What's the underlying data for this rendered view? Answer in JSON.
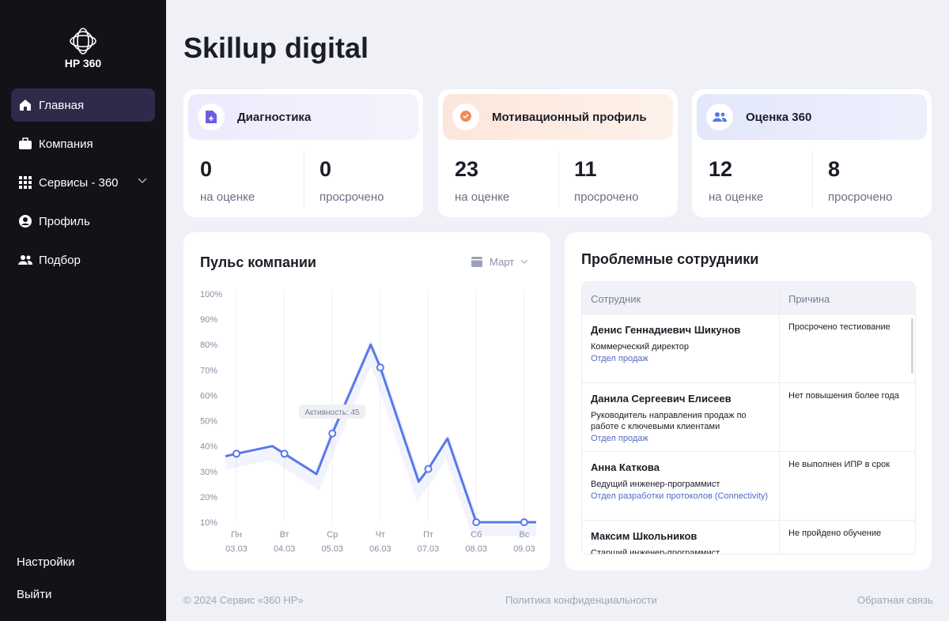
{
  "sidebar": {
    "logo": "HP 360",
    "menu": [
      "Главная",
      "Компания",
      "Сервисы - 360",
      "Профиль",
      "Подбор"
    ],
    "bottom": [
      "Настройки",
      "Выйти"
    ]
  },
  "header": {
    "title": "Skillup digital"
  },
  "cards": [
    {
      "title": "Диагностика",
      "stats": [
        {
          "value": 0,
          "label": "на оценке"
        },
        {
          "value": 0,
          "label": "просрочено"
        }
      ]
    },
    {
      "title": "Мотивационный профиль",
      "stats": [
        {
          "value": 23,
          "label": "на оценке"
        },
        {
          "value": 11,
          "label": "просрочено"
        }
      ]
    },
    {
      "title": "Оценка 360",
      "stats": [
        {
          "value": 12,
          "label": "на оценке"
        },
        {
          "value": 8,
          "label": "просрочено"
        }
      ]
    }
  ],
  "chart_data": {
    "type": "line",
    "title": "Пульс компании",
    "period": "Март",
    "color": "#5a78ea",
    "x": [
      -0.23,
      0,
      0.75,
      1,
      1.67,
      2,
      2.8,
      3,
      3.8,
      4,
      4.4,
      5,
      6,
      6.25
    ],
    "values": [
      36,
      37,
      40,
      37,
      29,
      45,
      80,
      71,
      26,
      31,
      43,
      10,
      10,
      10
    ],
    "xlim": [
      -0.23,
      6.25
    ],
    "xticks": [
      {
        "value": 0,
        "label": "Пн"
      },
      {
        "value": 1,
        "label": "Вт"
      },
      {
        "value": 2,
        "label": "Ср"
      },
      {
        "value": 3,
        "label": "Чт"
      },
      {
        "value": 4,
        "label": "Пт"
      },
      {
        "value": 5,
        "label": "Сб"
      },
      {
        "value": 6,
        "label": "Вс"
      }
    ],
    "dates": [
      "03.03",
      "04.03",
      "05.03",
      "06.03",
      "07.03",
      "08.03",
      "09.03"
    ],
    "ylim": [
      10,
      100
    ],
    "yticks": [
      {
        "value": 10,
        "label": "10%"
      },
      {
        "value": 20,
        "label": "20%"
      },
      {
        "value": 30,
        "label": "30%"
      },
      {
        "value": 40,
        "label": "40%"
      },
      {
        "value": 50,
        "label": "50%"
      },
      {
        "value": 60,
        "label": "60%"
      },
      {
        "value": 70,
        "label": "70%"
      },
      {
        "value": 80,
        "label": "80%"
      },
      {
        "value": 90,
        "label": "90%"
      },
      {
        "value": 100,
        "label": "100%"
      }
    ],
    "tooltip": "Активность: 45",
    "grid": true
  },
  "table": {
    "title": "Проблемные сотрудники",
    "columns": [
      "Сотрудник",
      "Причина"
    ],
    "rows": [
      {
        "name": "Денис Геннадиевич Шикунов",
        "position": "Коммерческий директор",
        "department": "Отдел продаж",
        "reason": "Просрочено тестиование"
      },
      {
        "name": "Данила Сергеевич Елисеев",
        "position": "Руководитель направления продаж по работе с ключевыми клиентами",
        "department": "Отдел продаж",
        "reason": "Нет повышения более года"
      },
      {
        "name": "Анна Каткова",
        "position": "Ведущий инженер-программист",
        "department": "Отдел разработки протоколов (Connectivity)",
        "reason": "Не выполнен ИПР в срок"
      },
      {
        "name": "Максим Школьников",
        "position": "Старший инженер-программист",
        "department": "",
        "reason": "Не пройдено обучение"
      }
    ]
  },
  "footer": {
    "copyright": "© 2024 Сервис «360 HP»",
    "privacy": "Политика конфиденциальности",
    "feedback": "Обратная связь"
  }
}
